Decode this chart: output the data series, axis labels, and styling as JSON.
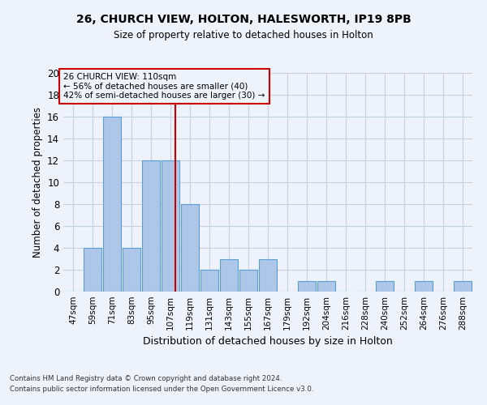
{
  "title": "26, CHURCH VIEW, HOLTON, HALESWORTH, IP19 8PB",
  "subtitle": "Size of property relative to detached houses in Holton",
  "xlabel": "Distribution of detached houses by size in Holton",
  "ylabel": "Number of detached properties",
  "categories": [
    "47sqm",
    "59sqm",
    "71sqm",
    "83sqm",
    "95sqm",
    "107sqm",
    "119sqm",
    "131sqm",
    "143sqm",
    "155sqm",
    "167sqm",
    "179sqm",
    "192sqm",
    "204sqm",
    "216sqm",
    "228sqm",
    "240sqm",
    "252sqm",
    "264sqm",
    "276sqm",
    "288sqm"
  ],
  "values": [
    0,
    4,
    16,
    4,
    12,
    12,
    8,
    2,
    3,
    2,
    3,
    0,
    1,
    1,
    0,
    0,
    1,
    0,
    1,
    0,
    1
  ],
  "bar_color": "#aec6e8",
  "bar_edge_color": "#5a9fd4",
  "vline_color": "#cc0000",
  "annotation_lines": [
    "26 CHURCH VIEW: 110sqm",
    "← 56% of detached houses are smaller (40)",
    "42% of semi-detached houses are larger (30) →"
  ],
  "ylim": [
    0,
    20
  ],
  "yticks": [
    0,
    2,
    4,
    6,
    8,
    10,
    12,
    14,
    16,
    18,
    20
  ],
  "footer1": "Contains HM Land Registry data © Crown copyright and database right 2024.",
  "footer2": "Contains public sector information licensed under the Open Government Licence v3.0.",
  "bg_color": "#eef2fa",
  "grid_color": "#c8d0e0"
}
